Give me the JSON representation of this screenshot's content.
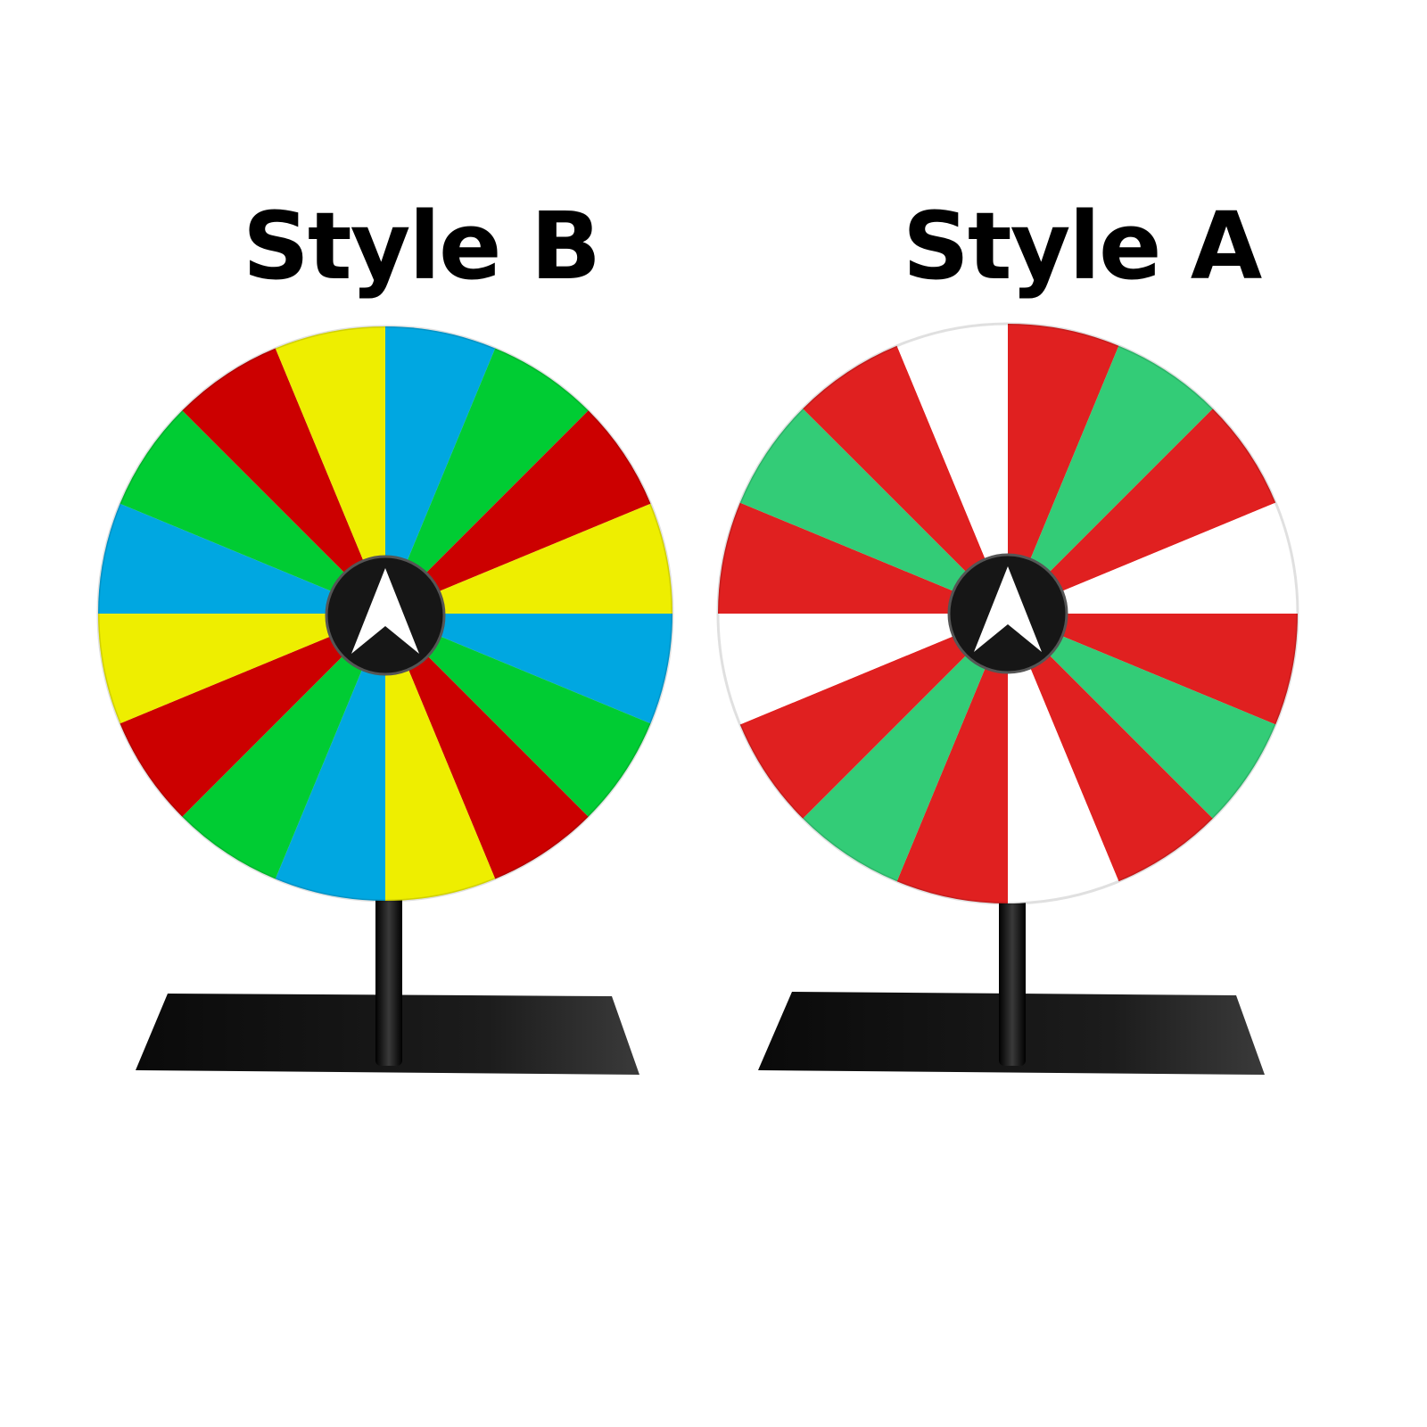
{
  "wheels": [
    {
      "label": "Style B",
      "segment_count": 16,
      "segment_colors": [
        "#00a7e1",
        "#00cc33",
        "#cc0000",
        "#eeee00"
      ]
    },
    {
      "label": "Style A",
      "segment_count": 16,
      "segment_colors": [
        "#e02020",
        "#33cc77",
        "#e02020",
        "#ffffff"
      ]
    }
  ],
  "hub_color": "#161616",
  "pointer_icon": "white-arrow-pointer",
  "stand_color": "#111111"
}
